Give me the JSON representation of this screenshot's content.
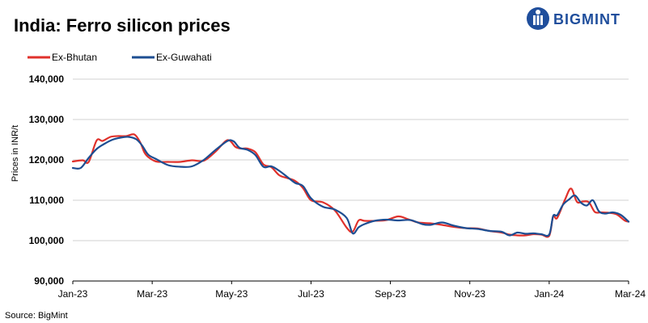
{
  "brand": {
    "name": "BIGMINT",
    "color": "#1f4e9c"
  },
  "source": "Source: BigMint",
  "chart_data": {
    "type": "line",
    "title": "India: Ferro silicon prices",
    "xlabel": "",
    "ylabel": "Prices in INR/t",
    "x_domain": [
      0,
      14
    ],
    "ylim": [
      90000,
      140000
    ],
    "yticks": [
      90000,
      100000,
      110000,
      120000,
      130000,
      140000
    ],
    "ytick_labels": [
      "90,000",
      "100,000",
      "110,000",
      "120,000",
      "130,000",
      "140,000"
    ],
    "xtick_labels": [
      "Jan-23",
      "Mar-23",
      "May-23",
      "Jul-23",
      "Sep-23",
      "Nov-23",
      "Jan-24",
      "Mar-24"
    ],
    "xtick_positions": [
      0,
      2,
      4,
      6,
      8,
      10,
      12,
      14
    ],
    "grid": true,
    "legend_position": "top-left",
    "series": [
      {
        "name": "Ex-Bhutan",
        "color": "#e0312b",
        "x": [
          0,
          0.25,
          0.4,
          0.6,
          0.75,
          0.95,
          1.15,
          1.35,
          1.55,
          1.7,
          1.8,
          1.9,
          2.1,
          2.4,
          2.7,
          3.0,
          3.3,
          3.6,
          3.9,
          4.1,
          4.25,
          4.4,
          4.6,
          4.8,
          5.0,
          5.2,
          5.4,
          5.6,
          5.8,
          6.0,
          6.3,
          6.6,
          6.9,
          7.05,
          7.2,
          7.35,
          7.6,
          7.9,
          8.2,
          8.45,
          8.7,
          9.0,
          9.3,
          9.6,
          9.9,
          10.2,
          10.5,
          10.8,
          11.0,
          11.2,
          11.4,
          11.6,
          11.8,
          12.0,
          12.1,
          12.2,
          12.4,
          12.55,
          12.7,
          12.85,
          13.0,
          13.15,
          13.3,
          13.5,
          13.7,
          13.9,
          14.0
        ],
        "values": [
          119600,
          119900,
          119500,
          124800,
          124700,
          125700,
          125900,
          125900,
          126300,
          124300,
          121900,
          120700,
          119600,
          119500,
          119500,
          119900,
          119800,
          122100,
          124900,
          123200,
          122800,
          122800,
          121900,
          118900,
          118200,
          116200,
          115500,
          114800,
          113000,
          110000,
          109500,
          107500,
          103200,
          102200,
          105000,
          104900,
          104900,
          105100,
          106000,
          105300,
          104500,
          104300,
          103900,
          103400,
          103100,
          103000,
          102400,
          102000,
          101500,
          101300,
          101300,
          101600,
          101500,
          101200,
          106000,
          105600,
          110200,
          112900,
          109600,
          109700,
          109500,
          107100,
          107000,
          106900,
          106500,
          105000,
          104700
        ]
      },
      {
        "name": "Ex-Guwahati",
        "color": "#1d4e92",
        "x": [
          0,
          0.2,
          0.4,
          0.6,
          0.8,
          1.0,
          1.2,
          1.4,
          1.6,
          1.75,
          1.9,
          2.1,
          2.4,
          2.7,
          3.0,
          3.3,
          3.6,
          3.9,
          4.05,
          4.2,
          4.4,
          4.6,
          4.8,
          5.0,
          5.2,
          5.4,
          5.6,
          5.8,
          6.0,
          6.3,
          6.6,
          6.9,
          7.05,
          7.2,
          7.35,
          7.6,
          7.9,
          8.2,
          8.5,
          8.8,
          9.0,
          9.3,
          9.6,
          9.9,
          10.2,
          10.5,
          10.8,
          11.0,
          11.2,
          11.4,
          11.6,
          11.8,
          12.0,
          12.1,
          12.2,
          12.35,
          12.5,
          12.65,
          12.8,
          12.95,
          13.1,
          13.25,
          13.4,
          13.6,
          13.8,
          14.0
        ],
        "values": [
          118000,
          118000,
          120500,
          122700,
          124000,
          125000,
          125500,
          125700,
          125100,
          123500,
          121300,
          120200,
          118700,
          118300,
          118400,
          120000,
          122500,
          124700,
          124600,
          123000,
          122500,
          121200,
          118300,
          118400,
          117300,
          115800,
          114300,
          113500,
          110500,
          108400,
          107700,
          105600,
          101800,
          103300,
          104100,
          104900,
          105200,
          105000,
          105100,
          104100,
          103900,
          104500,
          103700,
          103100,
          102900,
          102400,
          102200,
          101300,
          102000,
          101700,
          101800,
          101600,
          101500,
          106100,
          106300,
          108900,
          110200,
          111200,
          109400,
          108700,
          110000,
          107300,
          106700,
          107000,
          106400,
          104700
        ]
      }
    ]
  }
}
